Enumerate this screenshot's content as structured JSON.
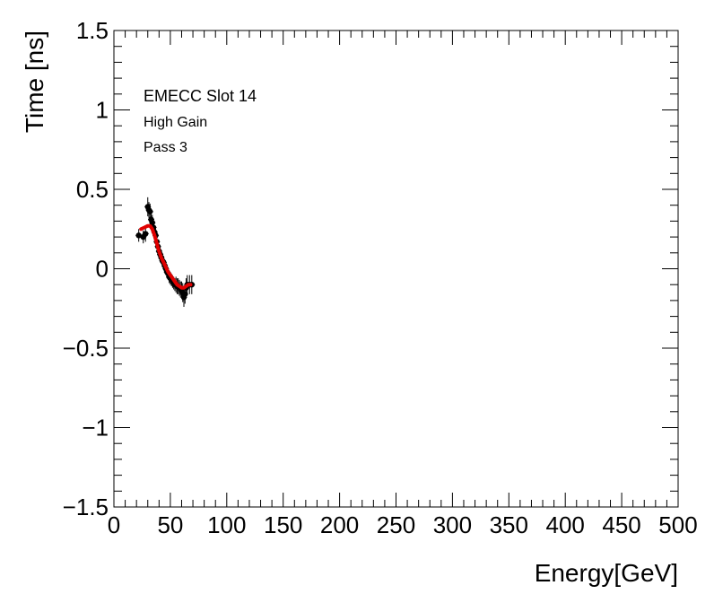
{
  "chart_data": {
    "type": "scatter",
    "xlabel": "Energy[GeV]",
    "ylabel": "Time [ns]",
    "xlim": [
      0,
      500
    ],
    "ylim": [
      -1.5,
      1.5
    ],
    "x_ticks": [
      "0",
      "50",
      "100",
      "150",
      "200",
      "250",
      "300",
      "350",
      "400",
      "450",
      "500"
    ],
    "y_ticks": [
      "−1.5",
      "−1",
      "−0.5",
      "0",
      "0.5",
      "1",
      "1.5"
    ],
    "grid": false,
    "annotations": [
      "EMECC Slot 14",
      "High Gain",
      "Pass 3"
    ],
    "points": [
      {
        "x": 22,
        "y": 0.21,
        "err": 0.04
      },
      {
        "x": 26,
        "y": 0.2,
        "err": 0.04
      },
      {
        "x": 28,
        "y": 0.22,
        "err": 0.05
      },
      {
        "x": 30,
        "y": 0.39,
        "err": 0.06
      },
      {
        "x": 31,
        "y": 0.37,
        "err": 0.05
      },
      {
        "x": 32,
        "y": 0.36,
        "err": 0.05
      },
      {
        "x": 33,
        "y": 0.31,
        "err": 0.05
      },
      {
        "x": 34,
        "y": 0.29,
        "err": 0.05
      },
      {
        "x": 35,
        "y": 0.26,
        "err": 0.05
      },
      {
        "x": 36,
        "y": 0.23,
        "err": 0.04
      },
      {
        "x": 37,
        "y": 0.21,
        "err": 0.04
      },
      {
        "x": 38,
        "y": 0.17,
        "err": 0.04
      },
      {
        "x": 39,
        "y": 0.14,
        "err": 0.04
      },
      {
        "x": 40,
        "y": 0.11,
        "err": 0.04
      },
      {
        "x": 41,
        "y": 0.09,
        "err": 0.04
      },
      {
        "x": 42,
        "y": 0.07,
        "err": 0.04
      },
      {
        "x": 43,
        "y": 0.05,
        "err": 0.04
      },
      {
        "x": 44,
        "y": 0.04,
        "err": 0.04
      },
      {
        "x": 45,
        "y": 0.02,
        "err": 0.04
      },
      {
        "x": 46,
        "y": 0.0,
        "err": 0.04
      },
      {
        "x": 47,
        "y": -0.02,
        "err": 0.04
      },
      {
        "x": 48,
        "y": -0.03,
        "err": 0.04
      },
      {
        "x": 49,
        "y": -0.05,
        "err": 0.04
      },
      {
        "x": 50,
        "y": -0.06,
        "err": 0.04
      },
      {
        "x": 51,
        "y": -0.07,
        "err": 0.04
      },
      {
        "x": 52,
        "y": -0.08,
        "err": 0.04
      },
      {
        "x": 53,
        "y": -0.09,
        "err": 0.04
      },
      {
        "x": 54,
        "y": -0.1,
        "err": 0.04
      },
      {
        "x": 55,
        "y": -0.1,
        "err": 0.05
      },
      {
        "x": 56,
        "y": -0.11,
        "err": 0.05
      },
      {
        "x": 57,
        "y": -0.11,
        "err": 0.05
      },
      {
        "x": 58,
        "y": -0.12,
        "err": 0.05
      },
      {
        "x": 59,
        "y": -0.13,
        "err": 0.05
      },
      {
        "x": 60,
        "y": -0.13,
        "err": 0.05
      },
      {
        "x": 61,
        "y": -0.15,
        "err": 0.06
      },
      {
        "x": 62,
        "y": -0.18,
        "err": 0.06
      },
      {
        "x": 63,
        "y": -0.16,
        "err": 0.06
      },
      {
        "x": 64,
        "y": -0.12,
        "err": 0.06
      },
      {
        "x": 65,
        "y": -0.1,
        "err": 0.06
      },
      {
        "x": 67,
        "y": -0.1,
        "err": 0.06
      },
      {
        "x": 69,
        "y": -0.1,
        "err": 0.06
      }
    ],
    "fit_curve": {
      "color": "#e00000",
      "x": [
        24,
        27,
        30,
        32,
        34,
        36,
        38,
        40,
        42,
        44,
        46,
        48,
        50,
        52,
        54,
        56,
        58,
        60,
        62,
        64,
        66,
        68
      ],
      "y": [
        0.25,
        0.26,
        0.27,
        0.27,
        0.25,
        0.21,
        0.16,
        0.11,
        0.07,
        0.04,
        0.01,
        -0.02,
        -0.04,
        -0.06,
        -0.08,
        -0.1,
        -0.11,
        -0.12,
        -0.12,
        -0.11,
        -0.1,
        -0.1
      ]
    },
    "marker_color": "#000000"
  }
}
